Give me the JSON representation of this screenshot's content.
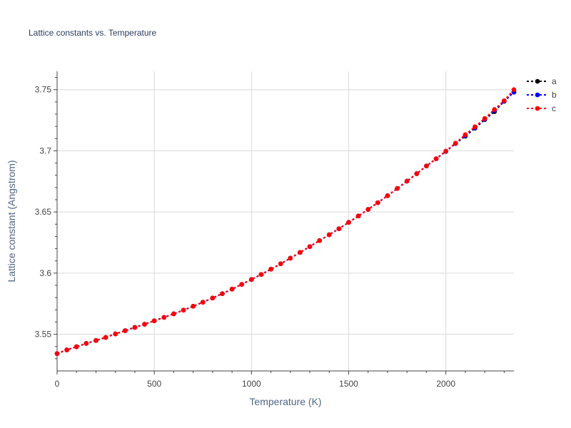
{
  "chart_data": {
    "type": "line",
    "title": "Lattice constants vs. Temperature",
    "xlabel": "Temperature (K)",
    "ylabel": "Lattice constant (Angstrom)",
    "xlim": [
      0,
      2350
    ],
    "ylim": [
      3.52,
      3.765
    ],
    "x_ticks": [
      0,
      500,
      1000,
      1500,
      2000
    ],
    "x_tick_labels": [
      "0",
      "500",
      "1000",
      "1500",
      "2000"
    ],
    "y_ticks": [
      3.55,
      3.6,
      3.65,
      3.7,
      3.75
    ],
    "y_tick_labels": [
      "3.55",
      "3.6",
      "3.65",
      "3.7",
      "3.75"
    ],
    "grid": true,
    "legend_position": "top-right-outside",
    "x": [
      0,
      50,
      100,
      150,
      200,
      250,
      300,
      350,
      400,
      450,
      500,
      550,
      600,
      650,
      700,
      750,
      800,
      850,
      900,
      950,
      1000,
      1050,
      1100,
      1150,
      1200,
      1250,
      1300,
      1350,
      1400,
      1450,
      1500,
      1550,
      1600,
      1650,
      1700,
      1750,
      1800,
      1850,
      1900,
      1950,
      2000,
      2050,
      2100,
      2150,
      2200,
      2250,
      2300,
      2350
    ],
    "series": [
      {
        "name": "a",
        "color": "#000000",
        "values": [
          3.5342,
          3.5372,
          3.5398,
          3.5425,
          3.5449,
          3.5474,
          3.5503,
          3.5529,
          3.5556,
          3.5582,
          3.561,
          3.5638,
          3.5667,
          3.5697,
          3.5729,
          3.5762,
          3.5796,
          3.5832,
          3.5869,
          3.5908,
          3.5948,
          3.5989,
          3.6032,
          3.6076,
          3.6122,
          3.6169,
          3.6217,
          3.6266,
          3.6314,
          3.6363,
          3.6415,
          3.6467,
          3.6521,
          3.6576,
          3.6633,
          3.6692,
          3.6752,
          3.6813,
          3.6876,
          3.6935,
          3.6995,
          3.706,
          3.712,
          3.7185,
          3.7255,
          3.732,
          3.7405,
          3.748
        ]
      },
      {
        "name": "b",
        "color": "#0000ff",
        "values": [
          3.5342,
          3.5372,
          3.5398,
          3.5425,
          3.5449,
          3.5474,
          3.5503,
          3.5529,
          3.5556,
          3.5582,
          3.561,
          3.5638,
          3.5667,
          3.5697,
          3.5729,
          3.5762,
          3.5796,
          3.5832,
          3.5869,
          3.5908,
          3.5948,
          3.5989,
          3.6032,
          3.6076,
          3.6122,
          3.6169,
          3.6217,
          3.6266,
          3.6314,
          3.6363,
          3.6415,
          3.6467,
          3.6521,
          3.6576,
          3.6633,
          3.6692,
          3.6752,
          3.6813,
          3.6876,
          3.6935,
          3.6995,
          3.706,
          3.7125,
          3.719,
          3.726,
          3.733,
          3.7405,
          3.748
        ]
      },
      {
        "name": "c",
        "color": "#ff0000",
        "values": [
          3.5342,
          3.5372,
          3.5398,
          3.5425,
          3.5449,
          3.5474,
          3.5503,
          3.5529,
          3.5556,
          3.5582,
          3.561,
          3.5638,
          3.5667,
          3.5697,
          3.5729,
          3.5762,
          3.5796,
          3.5832,
          3.5869,
          3.5908,
          3.5948,
          3.5989,
          3.6032,
          3.6076,
          3.6122,
          3.6169,
          3.6217,
          3.6266,
          3.6314,
          3.6363,
          3.6415,
          3.6467,
          3.6521,
          3.6576,
          3.6633,
          3.6692,
          3.6752,
          3.6813,
          3.6876,
          3.6935,
          3.6998,
          3.7063,
          3.7132,
          3.7197,
          3.7265,
          3.7338,
          3.741,
          3.75
        ]
      }
    ],
    "colors": {
      "grid": "#d9d9d9",
      "axis_text": "#444444",
      "title_text": "#2a3f5f",
      "label_text": "#506784"
    }
  }
}
